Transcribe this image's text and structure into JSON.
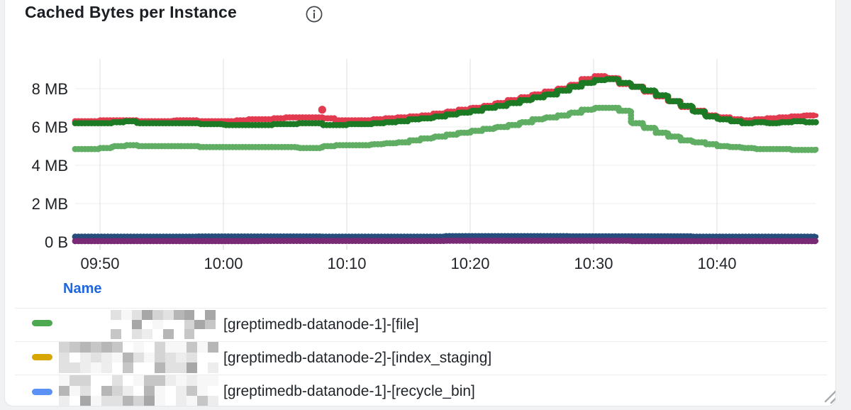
{
  "panel": {
    "title": "Cached Bytes per Instance",
    "icons": {
      "info": "circle-i-outline",
      "resize": "diagonal-grip-lines"
    }
  },
  "chart_data": {
    "type": "line",
    "title": "Cached Bytes per Instance",
    "style": "dotted-step-lines",
    "x_axis": {
      "ticks": [
        "09:50",
        "10:00",
        "10:10",
        "10:20",
        "10:30",
        "10:40"
      ],
      "start": "09:48",
      "end": "10:48",
      "grid": true
    },
    "y_axis": {
      "ticks_top_to_bottom": [
        "8 MB",
        "6 MB",
        "4 MB",
        "2 MB",
        "0 B"
      ],
      "unit": "bytes",
      "ylim_mb": [
        0,
        9.6
      ],
      "grid": true
    },
    "legend_position": "bottom-table",
    "series": [
      {
        "name": "crimson",
        "color": "#e23b50",
        "points": [
          [
            0,
            6.3
          ],
          [
            2,
            6.35
          ],
          [
            5,
            6.3
          ],
          [
            8,
            6.35
          ],
          [
            10,
            6.3
          ],
          [
            13,
            6.35
          ],
          [
            14,
            6.4
          ],
          [
            16,
            6.45
          ],
          [
            17,
            6.5
          ],
          [
            20,
            6.45
          ],
          [
            21,
            6.35
          ],
          [
            23,
            6.35
          ],
          [
            24,
            6.4
          ],
          [
            25,
            6.45
          ],
          [
            26,
            6.5
          ],
          [
            27,
            6.55
          ],
          [
            28,
            6.6
          ],
          [
            29,
            6.7
          ],
          [
            30,
            6.8
          ],
          [
            31,
            6.9
          ],
          [
            32,
            7.0
          ],
          [
            33,
            7.1
          ],
          [
            34,
            7.25
          ],
          [
            35,
            7.4
          ],
          [
            36,
            7.55
          ],
          [
            37,
            7.7
          ],
          [
            38,
            7.85
          ],
          [
            39,
            8.0
          ],
          [
            40,
            8.2
          ],
          [
            41,
            8.5
          ],
          [
            42,
            8.65
          ],
          [
            43,
            8.55
          ],
          [
            44,
            8.25
          ],
          [
            45,
            8.1
          ],
          [
            46,
            7.85
          ],
          [
            47,
            7.6
          ],
          [
            48,
            7.35
          ],
          [
            49,
            7.05
          ],
          [
            50,
            6.85
          ],
          [
            51,
            6.6
          ],
          [
            52,
            6.5
          ],
          [
            53,
            6.4
          ],
          [
            54,
            6.35
          ],
          [
            55,
            6.4
          ],
          [
            56,
            6.45
          ],
          [
            57,
            6.5
          ],
          [
            58,
            6.55
          ],
          [
            59,
            6.6
          ],
          [
            60,
            6.6
          ]
        ]
      },
      {
        "name": "dark-green",
        "color": "#1d7a24",
        "points": [
          [
            0,
            6.2
          ],
          [
            3,
            6.25
          ],
          [
            4,
            6.3
          ],
          [
            5,
            6.2
          ],
          [
            8,
            6.2
          ],
          [
            10,
            6.15
          ],
          [
            12,
            6.1
          ],
          [
            14,
            6.1
          ],
          [
            16,
            6.15
          ],
          [
            18,
            6.2
          ],
          [
            20,
            6.1
          ],
          [
            22,
            6.15
          ],
          [
            24,
            6.2
          ],
          [
            25,
            6.25
          ],
          [
            26,
            6.3
          ],
          [
            27,
            6.4
          ],
          [
            28,
            6.45
          ],
          [
            29,
            6.55
          ],
          [
            30,
            6.65
          ],
          [
            31,
            6.75
          ],
          [
            32,
            6.85
          ],
          [
            33,
            7.0
          ],
          [
            34,
            7.1
          ],
          [
            35,
            7.25
          ],
          [
            36,
            7.4
          ],
          [
            37,
            7.55
          ],
          [
            38,
            7.7
          ],
          [
            39,
            7.9
          ],
          [
            40,
            8.1
          ],
          [
            41,
            8.3
          ],
          [
            42,
            8.45
          ],
          [
            43,
            8.5
          ],
          [
            44,
            8.3
          ],
          [
            45,
            8.1
          ],
          [
            46,
            7.9
          ],
          [
            47,
            7.65
          ],
          [
            48,
            7.35
          ],
          [
            49,
            7.1
          ],
          [
            50,
            6.8
          ],
          [
            51,
            6.55
          ],
          [
            52,
            6.4
          ],
          [
            53,
            6.3
          ],
          [
            54,
            6.2
          ],
          [
            55,
            6.25
          ],
          [
            56,
            6.2
          ],
          [
            57,
            6.25
          ],
          [
            58,
            6.3
          ],
          [
            59,
            6.25
          ],
          [
            60,
            6.25
          ]
        ]
      },
      {
        "name": "light-green",
        "color": "#5fae63",
        "points": [
          [
            0,
            4.85
          ],
          [
            2,
            4.9
          ],
          [
            3,
            5.0
          ],
          [
            4,
            5.05
          ],
          [
            5,
            5.0
          ],
          [
            8,
            5.0
          ],
          [
            10,
            4.95
          ],
          [
            14,
            4.95
          ],
          [
            18,
            4.9
          ],
          [
            20,
            5.0
          ],
          [
            21,
            5.05
          ],
          [
            24,
            5.1
          ],
          [
            25,
            5.15
          ],
          [
            26,
            5.2
          ],
          [
            27,
            5.3
          ],
          [
            28,
            5.4
          ],
          [
            29,
            5.5
          ],
          [
            30,
            5.6
          ],
          [
            31,
            5.7
          ],
          [
            32,
            5.8
          ],
          [
            33,
            5.9
          ],
          [
            34,
            6.0
          ],
          [
            35,
            6.1
          ],
          [
            36,
            6.25
          ],
          [
            37,
            6.4
          ],
          [
            38,
            6.5
          ],
          [
            39,
            6.6
          ],
          [
            40,
            6.75
          ],
          [
            41,
            6.9
          ],
          [
            42,
            7.0
          ],
          [
            43,
            7.0
          ],
          [
            44,
            6.85
          ],
          [
            45,
            6.2
          ],
          [
            46,
            5.95
          ],
          [
            47,
            5.7
          ],
          [
            48,
            5.5
          ],
          [
            49,
            5.3
          ],
          [
            50,
            5.2
          ],
          [
            51,
            5.1
          ],
          [
            52,
            5.0
          ],
          [
            53,
            4.95
          ],
          [
            54,
            4.9
          ],
          [
            55,
            4.85
          ],
          [
            58,
            4.8
          ],
          [
            60,
            4.85
          ]
        ]
      },
      {
        "name": "navy",
        "color": "#264d7c",
        "points": [
          [
            0,
            0.27
          ],
          [
            10,
            0.28
          ],
          [
            20,
            0.27
          ],
          [
            30,
            0.3
          ],
          [
            40,
            0.29
          ],
          [
            50,
            0.27
          ],
          [
            60,
            0.28
          ]
        ]
      },
      {
        "name": "purple",
        "color": "#792a74",
        "points": [
          [
            0,
            0.04
          ],
          [
            15,
            0.05
          ],
          [
            30,
            0.06
          ],
          [
            45,
            0.04
          ],
          [
            60,
            0.05
          ]
        ]
      }
    ],
    "outlier_point": {
      "series": "crimson",
      "t_min": 20,
      "mb": 6.9
    }
  },
  "legend": {
    "header": "Name",
    "rows": [
      {
        "color": "#4ca94f",
        "prefix_redacted": true,
        "label": "[greptimedb-datanode-1]-[file]"
      },
      {
        "color": "#d7a602",
        "prefix_redacted": true,
        "label": "[greptimedb-datanode-2]-[index_staging]"
      },
      {
        "color": "#5b91f5",
        "prefix_redacted": true,
        "label": "[greptimedb-datanode-1]-[recycle_bin]"
      }
    ]
  }
}
